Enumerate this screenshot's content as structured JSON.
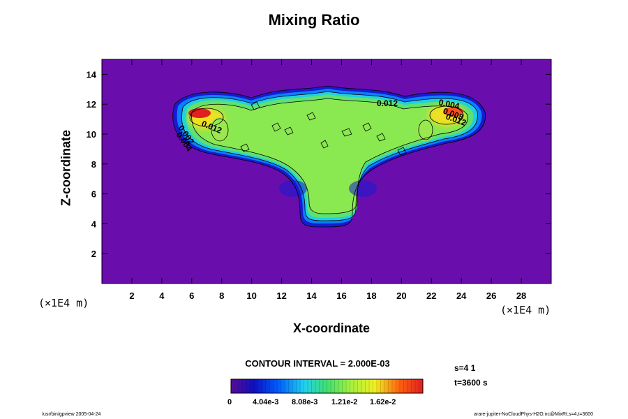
{
  "title": "Mixing Ratio",
  "chart_data": {
    "type": "heatmap",
    "title": "Mixing Ratio",
    "xlabel": "X-coordinate",
    "ylabel": "Z-coordinate",
    "x_unit": "(×1E4 m)",
    "y_unit": "(×1E4 m)",
    "xlim": [
      0,
      30
    ],
    "ylim": [
      0,
      15
    ],
    "x_ticks": [
      "2",
      "4",
      "6",
      "8",
      "10",
      "12",
      "14",
      "16",
      "18",
      "20",
      "22",
      "24",
      "26",
      "28"
    ],
    "y_ticks": [
      "2",
      "4",
      "6",
      "8",
      "10",
      "12",
      "14"
    ],
    "contour_labels": [
      "0.012",
      "0.004",
      "0.012",
      "0.002",
      "0.004",
      "0.008",
      "0.012"
    ],
    "contour_interval_text": "CONTOUR INTERVAL = 2.000E-03",
    "colorbar_ticks": [
      "0",
      "4.04e-3",
      "8.08e-3",
      "1.21e-2",
      "1.62e-2"
    ],
    "colorbar_range": [
      0,
      0.0202
    ],
    "background_color": "#6a0dad",
    "description_values": {
      "plume_center_x": 15,
      "cloud_top_z": 12.5,
      "cloud_bottom_z": 4,
      "max_region_left_x": 6.5,
      "max_region_right_x": 23.5
    }
  },
  "info": {
    "step_label": "s=4 1",
    "time_label": "t=3600 s"
  },
  "footer": {
    "left": "/usr/bin/gpview 2005-04-24",
    "right": "arare-jupiter-NoCloudPhys-H2O.nc@MixRt,s=4,t=3600"
  }
}
